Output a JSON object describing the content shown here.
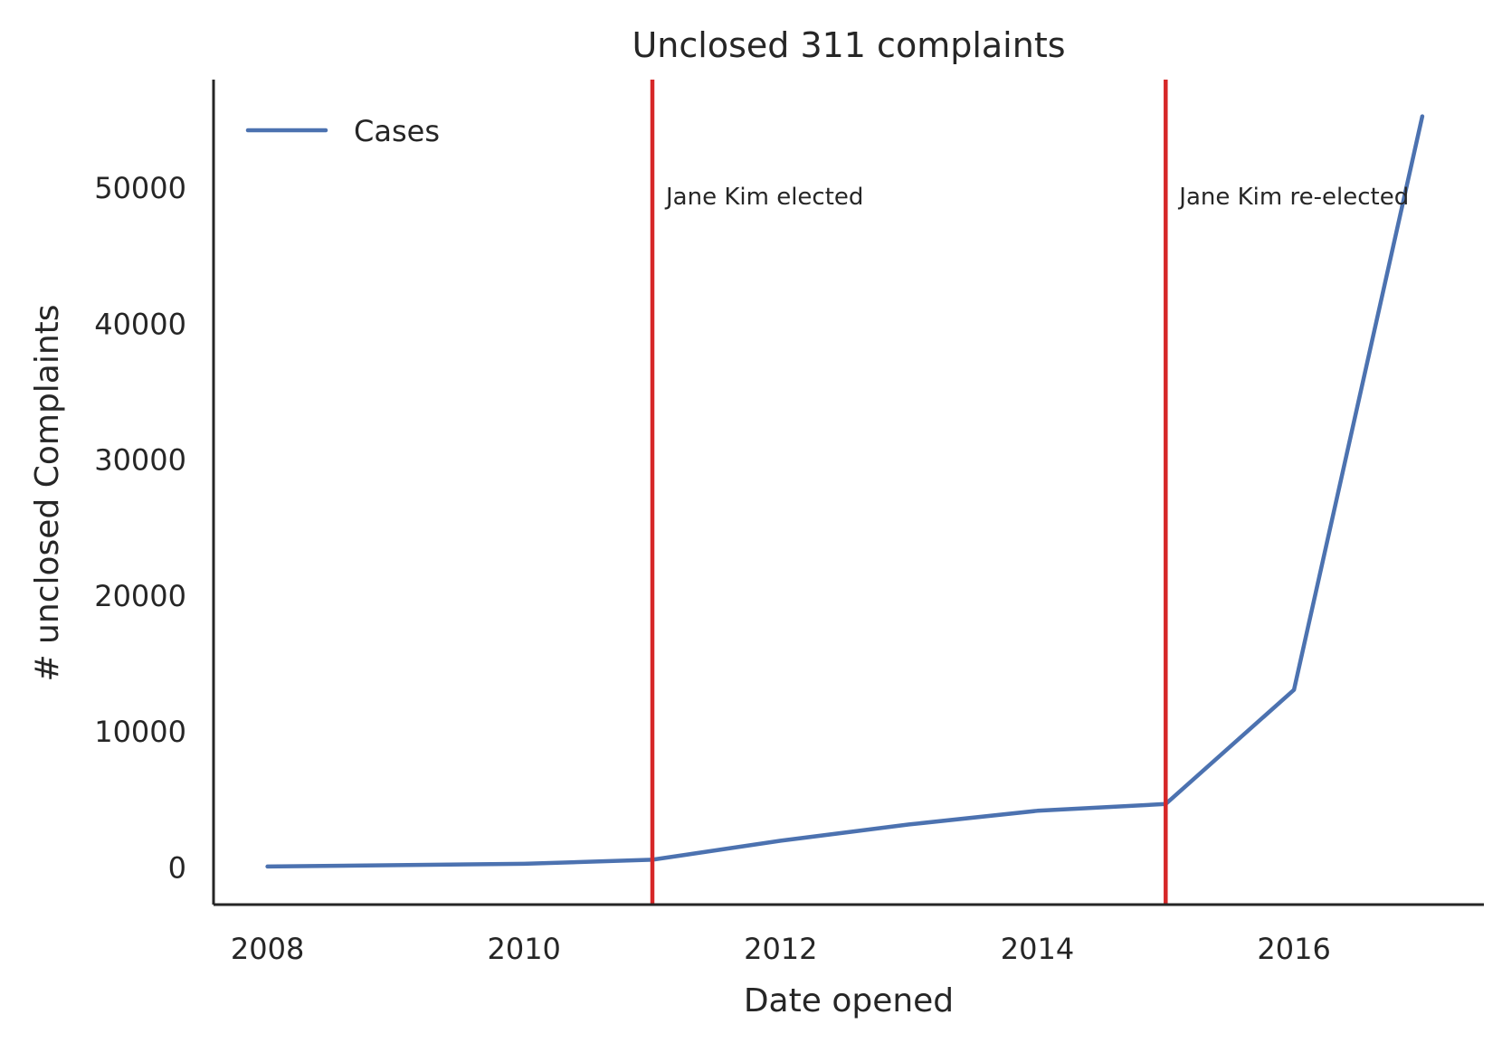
{
  "chart_data": {
    "type": "line",
    "title": "Unclosed 311 complaints",
    "xlabel": "Date opened",
    "ylabel": "# unclosed Complaints",
    "xlim": [
      2007.58,
      2017.48
    ],
    "ylim": [
      -2700,
      58000
    ],
    "x_ticks": [
      2008,
      2010,
      2012,
      2014,
      2016
    ],
    "y_ticks": [
      0,
      10000,
      20000,
      30000,
      40000,
      50000
    ],
    "grid": false,
    "legend": {
      "position": "top-left",
      "entries": [
        "Cases"
      ]
    },
    "series": [
      {
        "name": "Cases",
        "color": "#4c72b0",
        "x": [
          2008,
          2010,
          2011,
          2012,
          2013,
          2014,
          2015,
          2016,
          2017
        ],
        "y": [
          100,
          300,
          600,
          2000,
          3200,
          4200,
          4700,
          13100,
          55300
        ]
      }
    ],
    "vlines": [
      {
        "x": 2011,
        "color": "#d62728",
        "label": "Jane Kim elected"
      },
      {
        "x": 2015,
        "color": "#d62728",
        "label": "Jane Kim re-elected"
      }
    ]
  }
}
